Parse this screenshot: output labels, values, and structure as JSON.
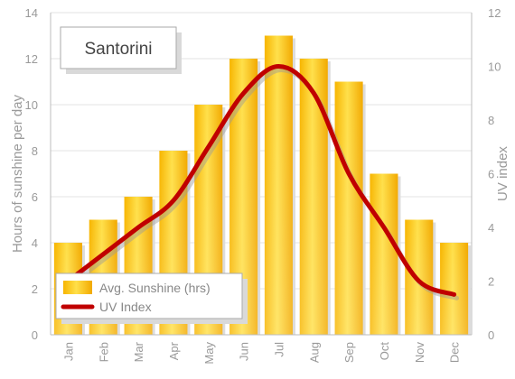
{
  "chart_data": {
    "type": "bar",
    "title": "Santorini",
    "categories": [
      "Jan",
      "Feb",
      "Mar",
      "Apr",
      "May",
      "Jun",
      "Jul",
      "Aug",
      "Sep",
      "Oct",
      "Nov",
      "Dec"
    ],
    "series": [
      {
        "name": "Avg. Sunshine (hrs)",
        "type": "bar",
        "axis": "left",
        "values": [
          4,
          5,
          6,
          8,
          10,
          12,
          13,
          12,
          11,
          7,
          5,
          4
        ],
        "color": "#f5b800"
      },
      {
        "name": "UV Index",
        "type": "line",
        "axis": "right",
        "values": [
          2,
          3,
          4,
          5,
          7,
          9,
          10,
          9,
          6,
          4,
          2,
          1.5
        ],
        "color": "#c00000"
      }
    ],
    "ylabel": "Hours of sunshine per day",
    "y2label": "UV index",
    "ylim": [
      0,
      14
    ],
    "y2lim": [
      0,
      12
    ],
    "yticks": [
      0,
      2,
      4,
      6,
      8,
      10,
      12,
      14
    ],
    "y2ticks": [
      0,
      2,
      4,
      6,
      8,
      10,
      12
    ],
    "grid": true,
    "legend_position": "bottom-left"
  }
}
